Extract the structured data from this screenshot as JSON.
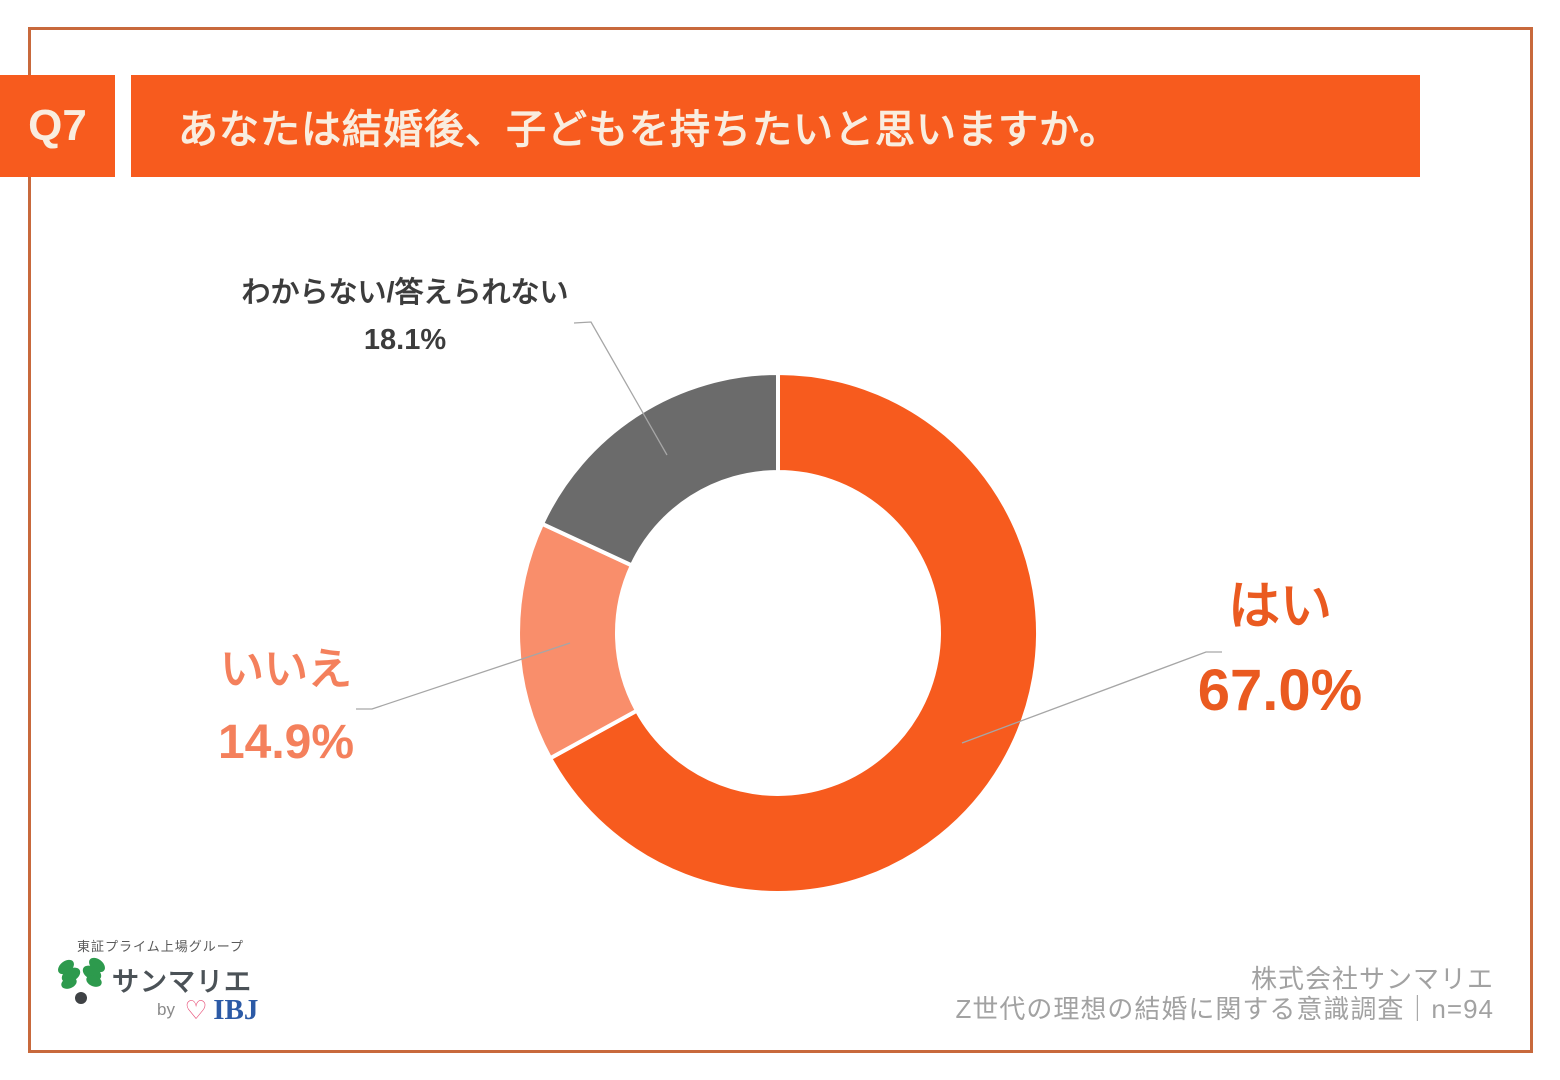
{
  "header": {
    "question_number": "Q7",
    "question_title": "あなたは結婚後、子どもを持ちたいと思いますか。"
  },
  "chart_data": {
    "type": "pie",
    "subtype": "donut",
    "title": "あなたは結婚後、子どもを持ちたいと思いますか。",
    "categories": [
      "はい",
      "いいえ",
      "わからない/答えられない"
    ],
    "values": [
      67.0,
      14.9,
      18.1
    ],
    "unit": "%",
    "colors": [
      "#F75B1E",
      "#F98E6B",
      "#6B6B6B"
    ],
    "start_angle_deg": 0,
    "direction": "clockwise",
    "donut_hole_ratio": 0.62,
    "legend": "none",
    "labels": [
      {
        "name": "はい",
        "value_text": "67.0%",
        "color": "#EA5A20"
      },
      {
        "name": "いいえ",
        "value_text": "14.9%",
        "color": "#F4805C"
      },
      {
        "name": "わからない/答えられない",
        "value_text": "18.1%",
        "color": "#3C3C3C"
      }
    ]
  },
  "footer": {
    "logo": {
      "group_label": "東証プライム上場グループ",
      "brand": "サンマリエ",
      "by_label": "by",
      "heart_icon": "♡",
      "partner": "IBJ"
    },
    "source_company": "株式会社サンマリエ",
    "source_survey": "Z世代の理想の結婚に関する意識調査｜n=94"
  },
  "colors": {
    "accent_orange": "#F75B1E",
    "frame_border": "#C8693C",
    "segment_yes": "#F75B1E",
    "segment_no": "#F98E6B",
    "segment_unknown": "#6B6B6B",
    "title_text": "#F9EDDF",
    "callout_yes_text": "#EA5A20",
    "callout_no_text": "#F4805C",
    "callout_unknown_text": "#3C3C3C",
    "footer_text": "#A2A2A2",
    "leader_line": "#A6A6A6"
  }
}
